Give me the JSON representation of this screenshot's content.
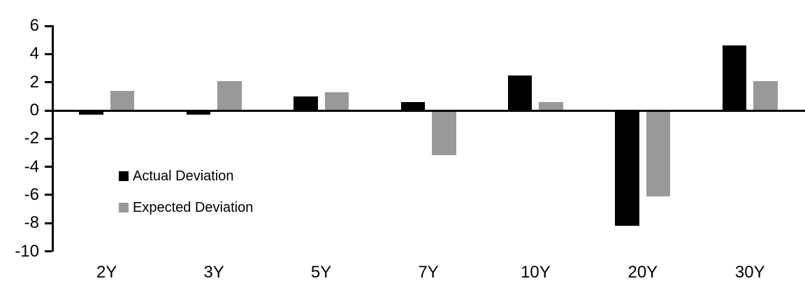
{
  "chart_data": {
    "type": "bar",
    "title": "",
    "xlabel": "",
    "ylabel": "",
    "categories": [
      "2Y",
      "3Y",
      "5Y",
      "7Y",
      "10Y",
      "20Y",
      "30Y"
    ],
    "series": [
      {
        "name": "Actual Deviation",
        "color": "#000000",
        "values": [
          -0.3,
          -0.3,
          1.0,
          0.6,
          2.5,
          -8.2,
          4.6
        ]
      },
      {
        "name": "Expected Deviation",
        "color": "#999999",
        "values": [
          1.4,
          2.1,
          1.3,
          -3.2,
          0.6,
          -6.1,
          2.1
        ]
      }
    ],
    "ylim": [
      -10,
      6
    ],
    "yticks": [
      6,
      4,
      2,
      0,
      -2,
      -4,
      -6,
      -8,
      -10
    ],
    "grid": false,
    "legend_position": "inside-left",
    "axis_color": "#000000",
    "background_color": "#ffffff"
  }
}
